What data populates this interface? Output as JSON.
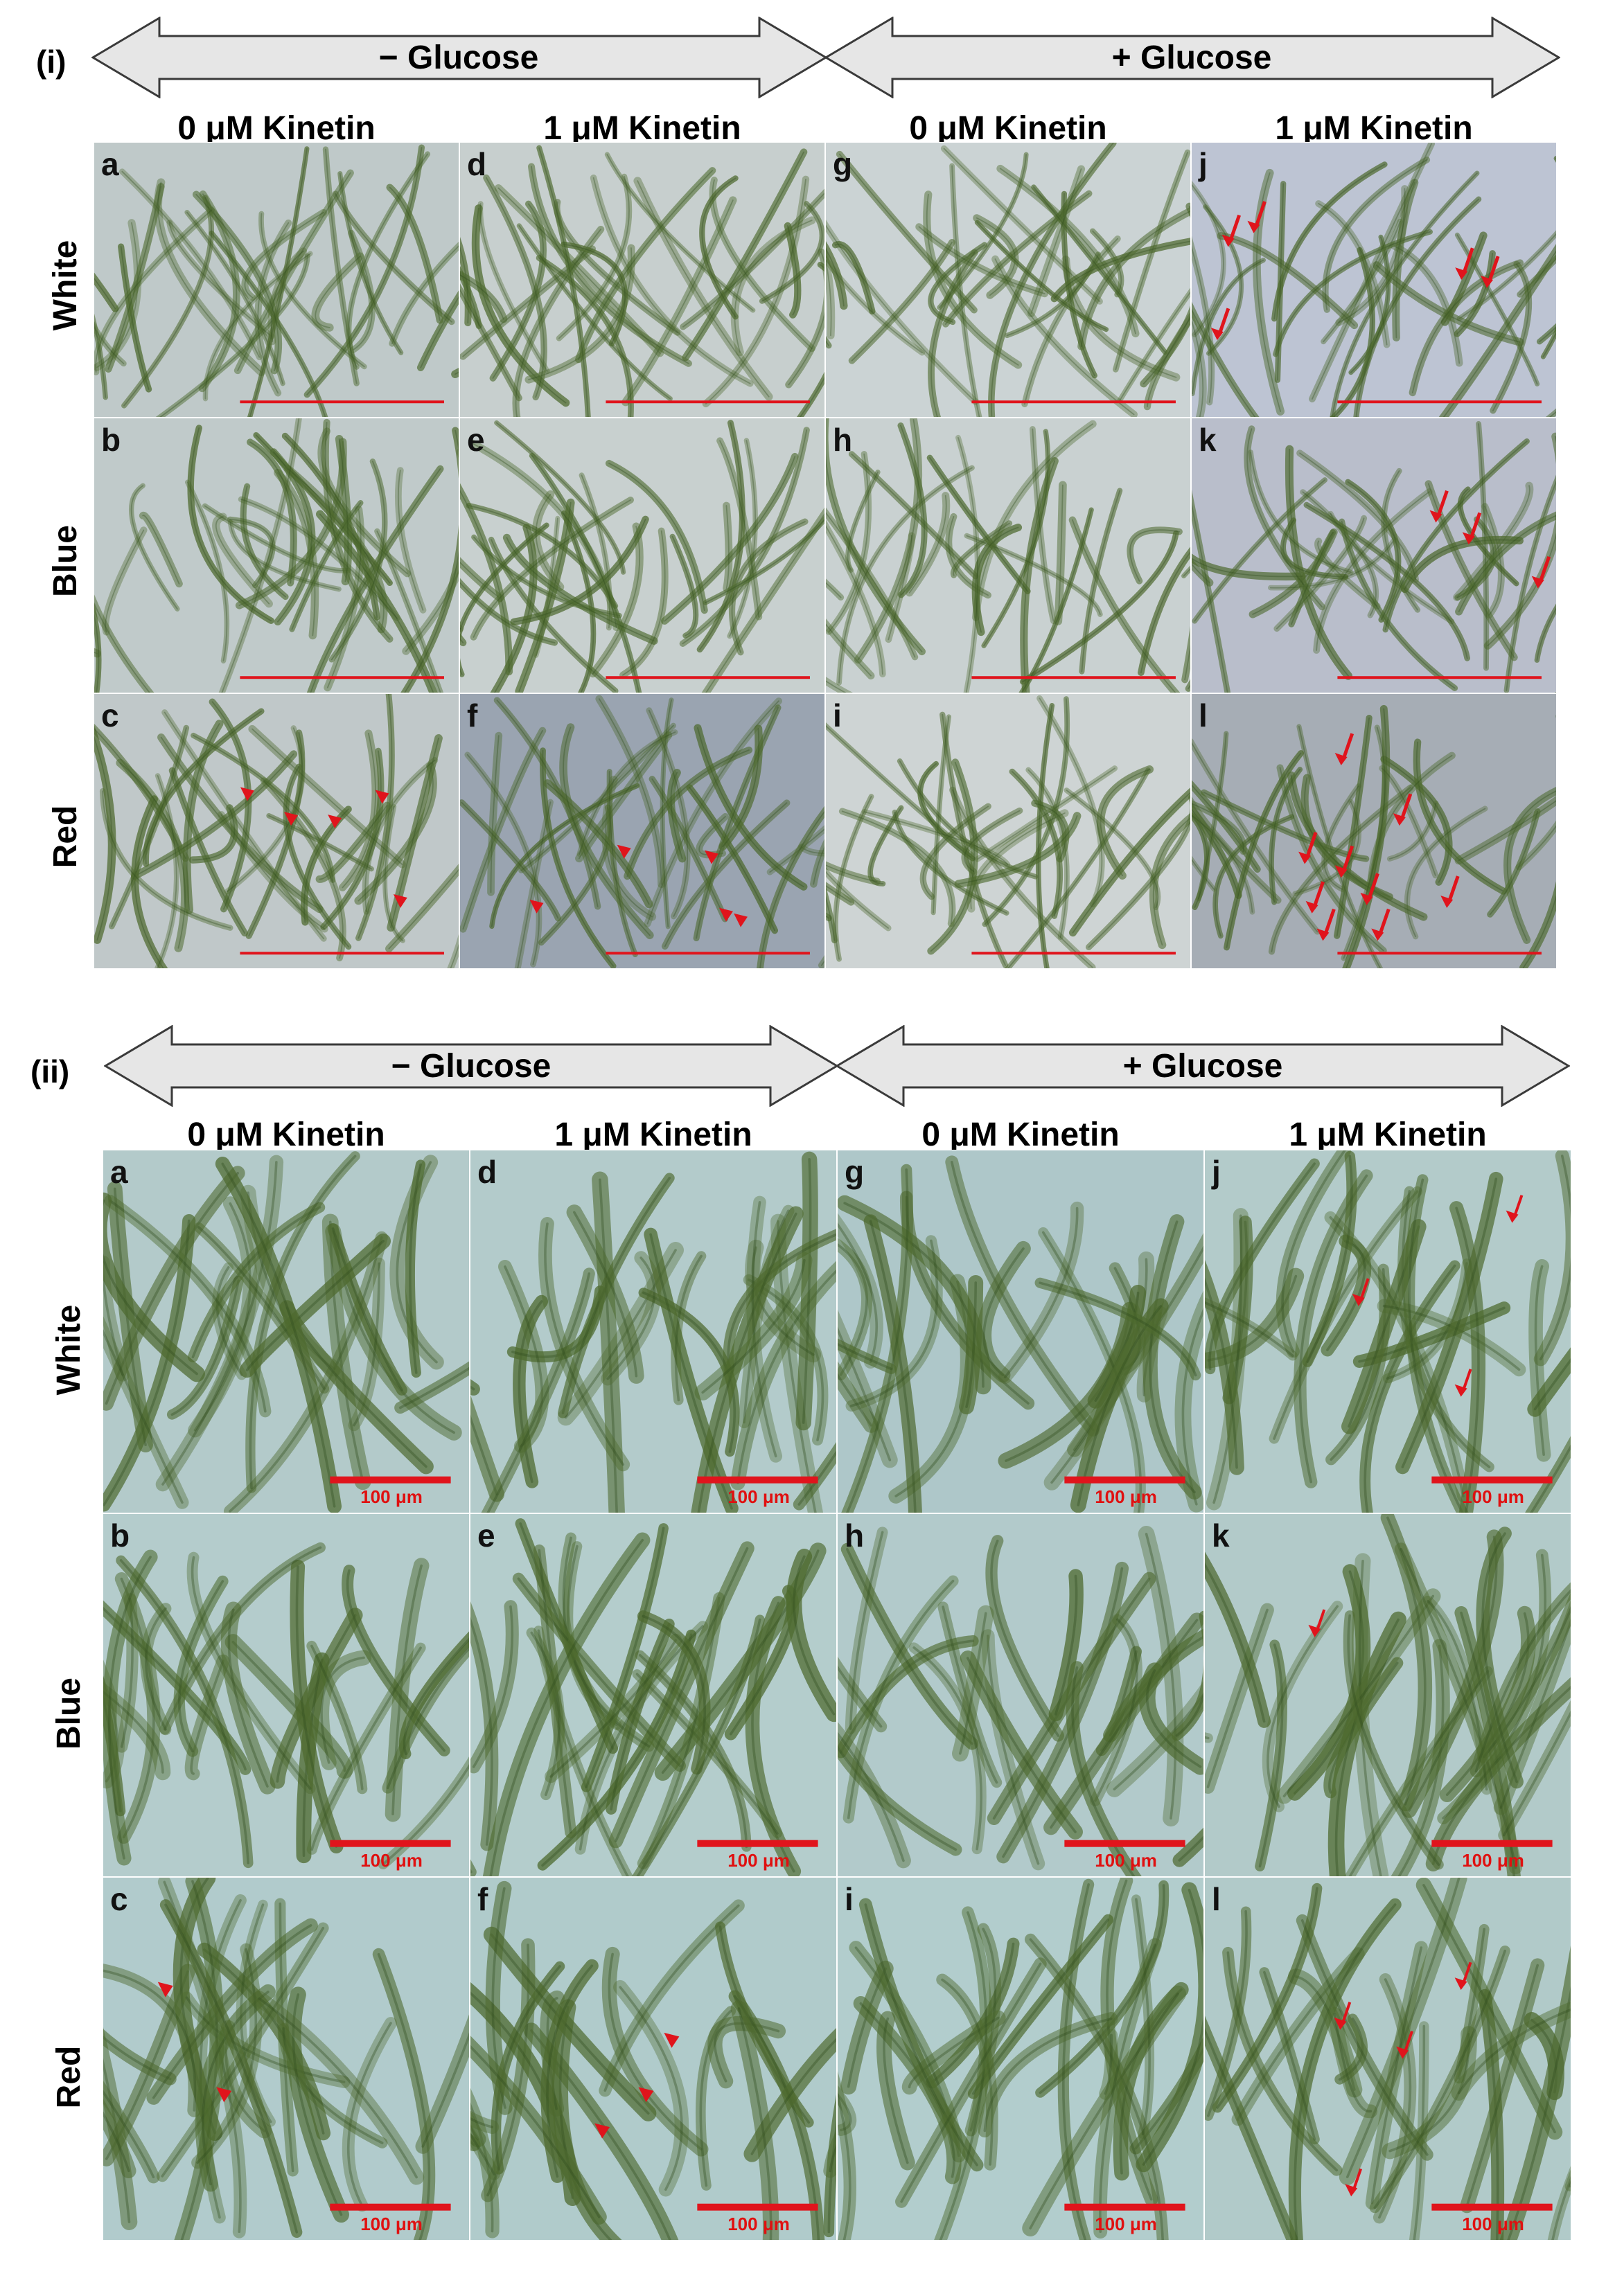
{
  "figure": {
    "colors": {
      "scale_bar": "#e0141c",
      "marker": "#e0141c",
      "filament": "#4e6a2f",
      "arrow_fill": "#e6e6e6",
      "arrow_stroke": "#3a3a3a"
    },
    "sections": [
      {
        "label": "(i)",
        "glucose": [
          "− Glucose",
          "+ Glucose"
        ],
        "kinetin": [
          "0 μM Kinetin",
          "1 μM Kinetin",
          "0 μM Kinetin",
          "1 μM Kinetin"
        ],
        "rows": [
          "White",
          "Blue",
          "Red"
        ],
        "panel_letters": [
          [
            "a",
            "d",
            "g",
            "j"
          ],
          [
            "b",
            "e",
            "h",
            "k"
          ],
          [
            "c",
            "f",
            "i",
            "l"
          ]
        ],
        "scale_label": "",
        "backgrounds": [
          [
            "#b7c2c2",
            "#c0c9c8",
            "#c4cdce",
            "#b4bccd"
          ],
          [
            "#b8c3c3",
            "#c1cac9",
            "#c2cbcb",
            "#b0b6c4"
          ],
          [
            "#b8c1c2",
            "#8c98a7",
            "#c8cfcf",
            "#9aa2ab"
          ]
        ]
      },
      {
        "label": "(ii)",
        "glucose": [
          "− Glucose",
          "+ Glucose"
        ],
        "kinetin": [
          "0 μM Kinetin",
          "1 μM Kinetin",
          "0 μM Kinetin",
          "1 μM Kinetin"
        ],
        "rows": [
          "White",
          "Blue",
          "Red"
        ],
        "panel_letters": [
          [
            "a",
            "d",
            "g",
            "j"
          ],
          [
            "b",
            "e",
            "h",
            "k"
          ],
          [
            "c",
            "f",
            "i",
            "l"
          ]
        ],
        "scale_label": "100 μm",
        "backgrounds": [
          [
            "#a9c3c3",
            "#a9c4c4",
            "#a3c0c2",
            "#a9c4c3"
          ],
          [
            "#aac5c5",
            "#aac6c5",
            "#a8c3c4",
            "#a8c3c2"
          ],
          [
            "#a7c4c5",
            "#a6c4c4",
            "#a8c6c7",
            "#a7c3c2"
          ]
        ]
      }
    ]
  }
}
